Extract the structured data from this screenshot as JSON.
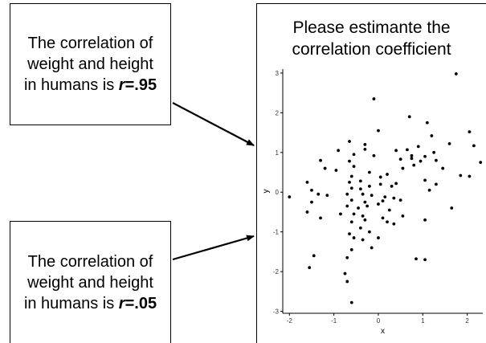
{
  "top_box": {
    "line1": "The correlation of",
    "line2": "weight and height",
    "line3_prefix": "in humans is ",
    "r_symbol": "r",
    "r_value": "=.95"
  },
  "bottom_box": {
    "line1": "The correlation of",
    "line2": "weight and height",
    "line3_prefix": "in humans is ",
    "r_symbol": "r",
    "r_value": "=.05"
  },
  "panel": {
    "title_line1": "Please estimante the",
    "title_line2": "correlation coefficient"
  },
  "chart_data": {
    "type": "scatter",
    "xlabel": "x",
    "ylabel": "y",
    "xlim": [
      -2.15,
      2.35
    ],
    "ylim": [
      -3.05,
      3.1
    ],
    "xticks": [
      -2,
      -1,
      0,
      1,
      2
    ],
    "yticks": [
      -3,
      -2,
      -1,
      0,
      1,
      2,
      3
    ],
    "grid": false,
    "color": "#000000",
    "points": [
      {
        "x": -0.1,
        "y": 2.35
      },
      {
        "x": 1.75,
        "y": 2.98
      },
      {
        "x": 0.7,
        "y": 1.9
      },
      {
        "x": 0.0,
        "y": 1.55
      },
      {
        "x": 1.1,
        "y": 1.75
      },
      {
        "x": 2.05,
        "y": 1.52
      },
      {
        "x": 1.6,
        "y": 1.22
      },
      {
        "x": 1.2,
        "y": 1.42
      },
      {
        "x": 0.9,
        "y": 1.15
      },
      {
        "x": 2.15,
        "y": 1.17
      },
      {
        "x": 1.25,
        "y": 1.0
      },
      {
        "x": -0.3,
        "y": 1.2
      },
      {
        "x": -0.65,
        "y": 1.28
      },
      {
        "x": -0.3,
        "y": 1.08
      },
      {
        "x": 0.4,
        "y": 1.05
      },
      {
        "x": 0.65,
        "y": 1.07
      },
      {
        "x": -0.55,
        "y": 0.95
      },
      {
        "x": 2.3,
        "y": 0.75
      },
      {
        "x": -0.1,
        "y": 0.92
      },
      {
        "x": 0.5,
        "y": 0.83
      },
      {
        "x": 0.75,
        "y": 0.92
      },
      {
        "x": 0.95,
        "y": 0.78
      },
      {
        "x": 1.05,
        "y": 0.9
      },
      {
        "x": 1.3,
        "y": 0.8
      },
      {
        "x": 0.75,
        "y": 0.85
      },
      {
        "x": -1.3,
        "y": 0.8
      },
      {
        "x": -1.2,
        "y": 0.6
      },
      {
        "x": -0.9,
        "y": 1.05
      },
      {
        "x": -0.65,
        "y": 0.78
      },
      {
        "x": -0.55,
        "y": 0.65
      },
      {
        "x": 0.55,
        "y": 0.6
      },
      {
        "x": 0.8,
        "y": 0.68
      },
      {
        "x": 1.45,
        "y": 0.6
      },
      {
        "x": 1.85,
        "y": 0.42
      },
      {
        "x": 2.05,
        "y": 0.4
      },
      {
        "x": -0.95,
        "y": 0.55
      },
      {
        "x": -0.2,
        "y": 0.5
      },
      {
        "x": -0.6,
        "y": 0.4
      },
      {
        "x": 0.2,
        "y": 0.45
      },
      {
        "x": -0.4,
        "y": 0.28
      },
      {
        "x": -0.65,
        "y": 0.25
      },
      {
        "x": 0.05,
        "y": 0.38
      },
      {
        "x": 0.4,
        "y": 0.22
      },
      {
        "x": 1.05,
        "y": 0.3
      },
      {
        "x": 1.3,
        "y": 0.2
      },
      {
        "x": -1.6,
        "y": 0.25
      },
      {
        "x": -1.5,
        "y": 0.05
      },
      {
        "x": -0.6,
        "y": 0.1
      },
      {
        "x": -0.4,
        "y": 0.08
      },
      {
        "x": -0.2,
        "y": 0.15
      },
      {
        "x": 0.05,
        "y": 0.2
      },
      {
        "x": 0.3,
        "y": 0.15
      },
      {
        "x": 1.15,
        "y": 0.05
      },
      {
        "x": -1.35,
        "y": -0.05
      },
      {
        "x": -1.15,
        "y": -0.08
      },
      {
        "x": -0.7,
        "y": -0.05
      },
      {
        "x": -0.35,
        "y": -0.05
      },
      {
        "x": -0.15,
        "y": -0.08
      },
      {
        "x": 0.15,
        "y": -0.12
      },
      {
        "x": 0.35,
        "y": -0.15
      },
      {
        "x": -2.0,
        "y": -0.12
      },
      {
        "x": -1.5,
        "y": -0.25
      },
      {
        "x": -0.6,
        "y": -0.2
      },
      {
        "x": -0.3,
        "y": -0.25
      },
      {
        "x": 0.1,
        "y": -0.22
      },
      {
        "x": 0.5,
        "y": -0.2
      },
      {
        "x": -0.7,
        "y": -0.35
      },
      {
        "x": -0.45,
        "y": -0.4
      },
      {
        "x": -0.25,
        "y": -0.35
      },
      {
        "x": 0.0,
        "y": -0.3
      },
      {
        "x": 0.25,
        "y": -0.45
      },
      {
        "x": 1.65,
        "y": -0.4
      },
      {
        "x": -1.6,
        "y": -0.5
      },
      {
        "x": -1.3,
        "y": -0.65
      },
      {
        "x": -0.85,
        "y": -0.55
      },
      {
        "x": -0.55,
        "y": -0.55
      },
      {
        "x": -0.35,
        "y": -0.6
      },
      {
        "x": 0.55,
        "y": -0.6
      },
      {
        "x": -0.6,
        "y": -0.75
      },
      {
        "x": -0.3,
        "y": -0.7
      },
      {
        "x": 0.1,
        "y": -0.65
      },
      {
        "x": 0.2,
        "y": -0.75
      },
      {
        "x": 1.05,
        "y": -0.7
      },
      {
        "x": -0.4,
        "y": -0.9
      },
      {
        "x": 0.35,
        "y": -0.8
      },
      {
        "x": -0.65,
        "y": -1.05
      },
      {
        "x": -0.2,
        "y": -1.0
      },
      {
        "x": -0.55,
        "y": -1.15
      },
      {
        "x": 0.0,
        "y": -1.15
      },
      {
        "x": -0.35,
        "y": -1.2
      },
      {
        "x": -0.6,
        "y": -1.45
      },
      {
        "x": -0.15,
        "y": -1.4
      },
      {
        "x": -1.45,
        "y": -1.6
      },
      {
        "x": -0.7,
        "y": -1.65
      },
      {
        "x": 0.85,
        "y": -1.68
      },
      {
        "x": 1.05,
        "y": -1.7
      },
      {
        "x": -1.55,
        "y": -1.9
      },
      {
        "x": -0.75,
        "y": -2.05
      },
      {
        "x": -0.7,
        "y": -2.25
      },
      {
        "x": -0.6,
        "y": -2.78
      }
    ]
  }
}
